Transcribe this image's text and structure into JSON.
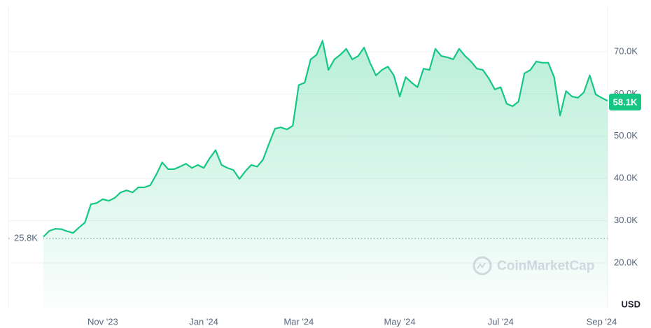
{
  "chart_data": {
    "type": "area",
    "color": "#16c784",
    "categories": [
      null,
      null,
      null,
      null,
      null,
      null,
      null,
      null,
      null,
      null,
      "Nov '23",
      null,
      null,
      null,
      null,
      null,
      null,
      null,
      null,
      null,
      null,
      null,
      null,
      null,
      null,
      null,
      null,
      "Jan '24",
      null,
      null,
      null,
      null,
      null,
      null,
      null,
      null,
      null,
      null,
      null,
      null,
      null,
      null,
      null,
      "Mar '24",
      null,
      null,
      null,
      null,
      null,
      null,
      null,
      null,
      null,
      null,
      null,
      null,
      null,
      null,
      null,
      null,
      "May '24",
      null,
      null,
      null,
      null,
      null,
      null,
      null,
      null,
      null,
      null,
      null,
      null,
      null,
      null,
      null,
      null,
      "Jul '24",
      null,
      null,
      null,
      null,
      null,
      null,
      null,
      null,
      null,
      null,
      null,
      null,
      null,
      null,
      null,
      null,
      "Sep '24",
      null
    ],
    "values": [
      26200,
      27600,
      28100,
      28000,
      27500,
      27100,
      28400,
      29600,
      33900,
      34200,
      35100,
      34700,
      35400,
      36700,
      37200,
      36700,
      37900,
      37900,
      38400,
      40900,
      43800,
      42200,
      42200,
      42800,
      43500,
      42500,
      43200,
      42500,
      44800,
      46700,
      43200,
      42500,
      42000,
      39900,
      41700,
      43200,
      42800,
      44500,
      48300,
      51800,
      52100,
      51600,
      52500,
      62100,
      62700,
      68200,
      69300,
      72600,
      65700,
      68200,
      69300,
      70700,
      68200,
      69000,
      71000,
      67400,
      64400,
      65700,
      66500,
      64400,
      59400,
      64000,
      62700,
      61600,
      66000,
      65700,
      70700,
      69000,
      68700,
      68200,
      70700,
      69000,
      67700,
      66000,
      65700,
      63700,
      61100,
      61600,
      57700,
      57100,
      58200,
      64900,
      65700,
      67700,
      67400,
      67400,
      64000,
      54900,
      60700,
      59400,
      59100,
      60400,
      64400,
      59900,
      59100,
      58400
    ],
    "ylim": [
      9400,
      80600
    ],
    "yticks": [
      {
        "value": 20000,
        "label": "20.0K"
      },
      {
        "value": 30000,
        "label": "30.0K"
      },
      {
        "value": 40000,
        "label": "40.0K"
      },
      {
        "value": 50000,
        "label": "50.0K"
      },
      {
        "value": 60000,
        "label": "60.0K"
      },
      {
        "value": 70000,
        "label": "70.0K"
      }
    ],
    "y_axis_label": "USD",
    "reference_line": {
      "label": "25.8K",
      "value": 25800
    },
    "last_price": {
      "label": "58.1K",
      "value": 58100
    },
    "watermark": "CoinMarketCap",
    "grid": true
  }
}
